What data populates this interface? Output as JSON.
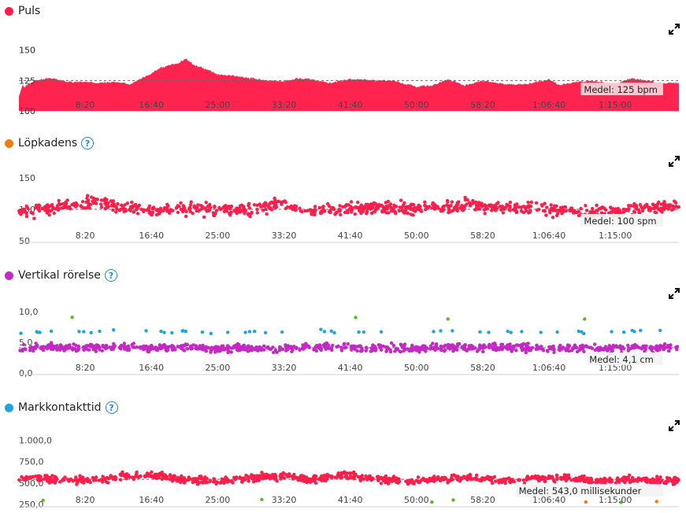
{
  "x_ticks": [
    "8:20",
    "16:40",
    "25:00",
    "33:20",
    "41:40",
    "50:00",
    "58:20",
    "1:06:40",
    "1:15:00"
  ],
  "charts": {
    "puls": {
      "title": "Puls",
      "color": "#ff1f4b",
      "fill": "#ff2550",
      "y_ticks": [
        "150",
        "125",
        "100"
      ],
      "avg_label": "Medel: 125 bpm"
    },
    "kadens": {
      "title": "Löpkadens",
      "color": "#ee7d10",
      "y_ticks": [
        "150",
        "100",
        "50"
      ],
      "avg_label": "Medel: 100 spm"
    },
    "vertikal": {
      "title": "Vertikal rörelse",
      "color": "#c429c4",
      "y_ticks": [
        "10,0",
        "5,0",
        "0,0"
      ],
      "avg_label": "Medel: 4,1 cm"
    },
    "mark": {
      "title": "Markkontakttid",
      "color": "#1ea5e0",
      "y_ticks": [
        "1.000,0",
        "750,0",
        "500,0",
        "250,0"
      ],
      "avg_label": "Medel: 543,0 millisekunder"
    }
  },
  "chart_data": [
    {
      "type": "area",
      "title": "Puls",
      "unit": "bpm",
      "x_unit": "elapsed time (mm:ss)",
      "x_range": [
        "0:00",
        "1:23:00"
      ],
      "ylim": [
        100,
        155
      ],
      "average": 125,
      "x": [
        "0:00",
        "2:00",
        "4:00",
        "6:00",
        "8:20",
        "10:00",
        "12:00",
        "14:00",
        "16:40",
        "18:00",
        "20:00",
        "21:00",
        "22:00",
        "24:00",
        "25:00",
        "27:00",
        "29:00",
        "31:00",
        "33:20",
        "35:00",
        "37:00",
        "39:00",
        "41:40",
        "43:00",
        "45:00",
        "47:00",
        "50:00",
        "52:00",
        "54:00",
        "56:00",
        "58:20",
        "60:00",
        "62:00",
        "64:00",
        "66:40",
        "68:00",
        "70:00",
        "72:00",
        "75:00",
        "77:00",
        "79:00",
        "81:00",
        "83:00"
      ],
      "y": [
        117,
        125,
        127,
        124,
        124,
        123,
        124,
        122,
        131,
        136,
        139,
        143,
        138,
        133,
        130,
        129,
        127,
        125,
        124,
        127,
        126,
        123,
        126,
        126,
        125,
        125,
        120,
        121,
        126,
        121,
        125,
        123,
        122,
        122,
        126,
        121,
        124,
        125,
        122,
        127,
        125,
        123,
        123
      ]
    },
    {
      "type": "scatter",
      "title": "Löpkadens",
      "unit": "spm",
      "ylim": [
        50,
        155
      ],
      "average": 100,
      "x": [
        "1:00",
        "5:00",
        "9:00",
        "13:00",
        "17:00",
        "21:00",
        "25:00",
        "29:00",
        "33:00",
        "37:00",
        "41:00",
        "45:00",
        "49:00",
        "53:00",
        "57:00",
        "61:00",
        "65:00",
        "69:00",
        "73:00",
        "77:00",
        "81:00"
      ],
      "y": [
        98,
        102,
        110,
        104,
        96,
        102,
        100,
        99,
        107,
        96,
        100,
        102,
        101,
        104,
        106,
        103,
        101,
        98,
        95,
        100,
        104
      ]
    },
    {
      "type": "scatter",
      "title": "Vertikal rörelse",
      "unit": "cm",
      "ylim": [
        0,
        10.5
      ],
      "average": 4.1,
      "x": [
        "1:00",
        "5:00",
        "9:00",
        "13:00",
        "17:00",
        "21:00",
        "25:00",
        "29:00",
        "33:00",
        "37:00",
        "41:00",
        "45:00",
        "49:00",
        "53:00",
        "57:00",
        "61:00",
        "65:00",
        "69:00",
        "73:00",
        "77:00",
        "81:00"
      ],
      "y": [
        4.0,
        4.2,
        4.1,
        4.3,
        4.0,
        4.2,
        3.9,
        4.1,
        4.0,
        4.3,
        4.2,
        4.1,
        4.0,
        4.2,
        4.1,
        4.2,
        4.0,
        4.1,
        3.9,
        4.2,
        4.1
      ]
    },
    {
      "type": "scatter",
      "title": "Markkontakttid",
      "unit": "millisekunder",
      "ylim": [
        250,
        1050
      ],
      "average": 543,
      "x": [
        "1:00",
        "5:00",
        "9:00",
        "13:00",
        "17:00",
        "21:00",
        "25:00",
        "29:00",
        "33:00",
        "37:00",
        "41:00",
        "45:00",
        "49:00",
        "53:00",
        "57:00",
        "61:00",
        "65:00",
        "69:00",
        "73:00",
        "77:00",
        "81:00"
      ],
      "y": [
        560,
        540,
        530,
        570,
        590,
        540,
        520,
        560,
        580,
        540,
        600,
        540,
        510,
        550,
        560,
        530,
        550,
        560,
        520,
        540,
        530
      ]
    }
  ]
}
